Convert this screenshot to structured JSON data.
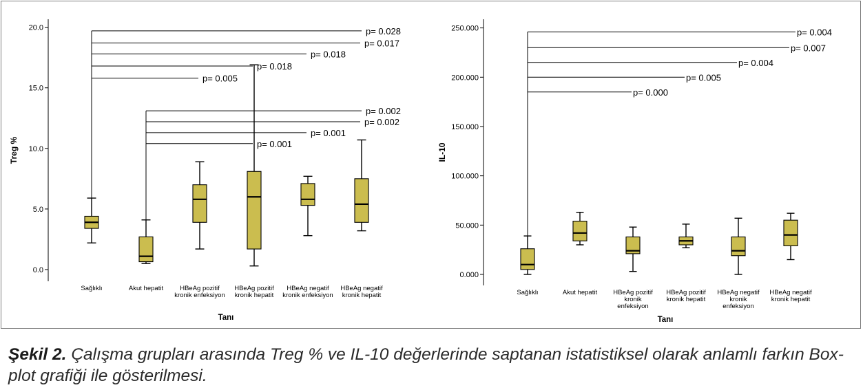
{
  "caption": {
    "label": "Şekil 2.",
    "text": "Çalışma grupları arasında Treg % ve IL-10 değerlerinde saptanan istatistiksel olarak anlamlı farkın Box-plot grafiği ile gösterilmesi."
  },
  "colors": {
    "box_fill": "#cbbd4f",
    "line": "#000000",
    "frame": "#7a7a7a"
  },
  "chart_data": [
    {
      "type": "box",
      "ylabel": "Treg %",
      "xlabel": "Tanı",
      "ylim": [
        -1,
        21
      ],
      "yticks": [
        "0.0",
        "5.0",
        "10.0",
        "15.0",
        "20.0"
      ],
      "ytick_values": [
        0,
        5,
        10,
        15,
        20
      ],
      "categories": [
        [
          "Sağlıklı"
        ],
        [
          "Akut hepatit"
        ],
        [
          "HBeAg pozitif",
          "kronik enfeksiyon"
        ],
        [
          "HBeAg pozitif",
          "kronik hepatit"
        ],
        [
          "HBeAg negatif",
          "kronik enfeksiyon"
        ],
        [
          "HBeAg negatif",
          "kronik hepatit"
        ]
      ],
      "boxes": [
        {
          "min": 2.2,
          "q1": 3.4,
          "median": 3.9,
          "q3": 4.4,
          "max": 5.9
        },
        {
          "min": 0.5,
          "q1": 0.65,
          "median": 1.1,
          "q3": 2.7,
          "max": 4.1
        },
        {
          "min": 1.7,
          "q1": 3.9,
          "median": 5.8,
          "q3": 7.0,
          "max": 8.9
        },
        {
          "min": 0.3,
          "q1": 1.7,
          "median": 6.0,
          "q3": 8.1,
          "max": 16.9
        },
        {
          "min": 2.8,
          "q1": 5.3,
          "median": 5.8,
          "q3": 7.1,
          "max": 7.7
        },
        {
          "min": 3.2,
          "q1": 3.9,
          "median": 5.4,
          "q3": 7.5,
          "max": 10.7
        }
      ],
      "annotations": [
        {
          "from": 0,
          "to": 6,
          "y": 19.7,
          "label": "p= 0.028"
        },
        {
          "from": 0,
          "to": 5,
          "y": 18.7,
          "label": "p= 0.017"
        },
        {
          "from": 0,
          "to": 4,
          "y": 17.8,
          "label": "p= 0.018"
        },
        {
          "from": 0,
          "to": 3,
          "y": 16.8,
          "label": "p= 0.018"
        },
        {
          "from": 0,
          "to": 2,
          "y": 15.8,
          "label": "p= 0.005"
        },
        {
          "from": 1,
          "to": 6,
          "y": 13.1,
          "label": "p= 0.002"
        },
        {
          "from": 1,
          "to": 5,
          "y": 12.2,
          "label": "p= 0.002"
        },
        {
          "from": 1,
          "to": 4,
          "y": 11.3,
          "label": "p= 0.001"
        },
        {
          "from": 1,
          "to": 3,
          "y": 10.4,
          "label": "p= 0.001"
        }
      ]
    },
    {
      "type": "box",
      "ylabel": "IL-10",
      "xlabel": "Tanı",
      "ylim": [
        -12000,
        262000
      ],
      "yticks": [
        "0.000",
        "50.000",
        "100.000",
        "150.000",
        "200.000",
        "250.000"
      ],
      "ytick_values": [
        0,
        50000,
        100000,
        150000,
        200000,
        250000
      ],
      "categories": [
        [
          "Sağlıklı"
        ],
        [
          "Akut hepatit"
        ],
        [
          "HBeAg pozitif",
          "kronik",
          "enfeksiyon"
        ],
        [
          "HBeAg pozitif",
          "kronik hepatit"
        ],
        [
          "HBeAg negatif",
          "kronik",
          "enfeksiyon"
        ],
        [
          "HBeAg negatif",
          "kronik hepatit"
        ]
      ],
      "boxes": [
        {
          "min": 0,
          "q1": 5000,
          "median": 10000,
          "q3": 26000,
          "max": 39000
        },
        {
          "min": 30000,
          "q1": 34000,
          "median": 42000,
          "q3": 54000,
          "max": 63000
        },
        {
          "min": 3000,
          "q1": 21000,
          "median": 24000,
          "q3": 38000,
          "max": 48000
        },
        {
          "min": 27000,
          "q1": 30000,
          "median": 34000,
          "q3": 38000,
          "max": 51000
        },
        {
          "min": 0,
          "q1": 19000,
          "median": 24000,
          "q3": 38000,
          "max": 57000
        },
        {
          "min": 15000,
          "q1": 29000,
          "median": 40000,
          "q3": 55000,
          "max": 62000
        }
      ],
      "annotations": [
        {
          "from": 0,
          "to": 6,
          "y": 246000,
          "label": "p= 0.004"
        },
        {
          "from": 0,
          "to": 5,
          "y": 230000,
          "label": "p= 0.007"
        },
        {
          "from": 0,
          "to": 4,
          "y": 215000,
          "label": "p= 0.004"
        },
        {
          "from": 0,
          "to": 3,
          "y": 200000,
          "label": "p= 0.005"
        },
        {
          "from": 0,
          "to": 2,
          "y": 185000,
          "label": "p= 0.000"
        }
      ]
    }
  ]
}
